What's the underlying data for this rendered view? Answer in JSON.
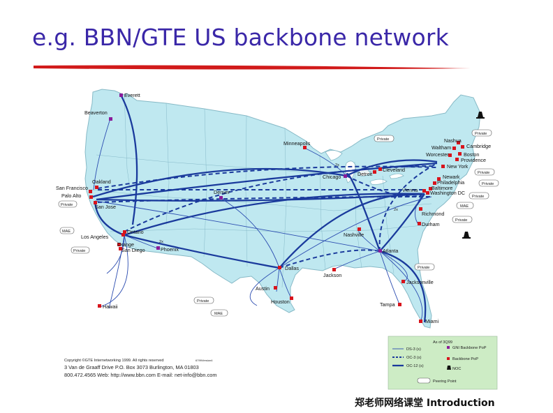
{
  "slide": {
    "title": "e.g. BBN/GTE US backbone network",
    "footer": "郑老师网络课堂  Introduction"
  },
  "colors": {
    "title": "#3a27a8",
    "underline": "#d11a1a",
    "land": "#bfe8f0",
    "ocean": "#ffffff",
    "backbone_line": "#1a3a9c",
    "gni_pop": "#8a1c9a",
    "backbone_pop": "#d8141c",
    "legend_bg": "#cdecc5"
  },
  "map": {
    "cities": {
      "everett": "Everett",
      "beaverton": "Beaverton",
      "oakland": "Oakland",
      "san_francisco": "San Francisco",
      "palo_alto": "Palo Alto",
      "san_jose": "San Jose",
      "los_angeles": "Los Angeles",
      "ontario": "Ontario",
      "orange": "Orange",
      "san_diego": "San Diego",
      "phoenix": "Phoenix",
      "denver": "Denver",
      "hawaii": "Hawaii",
      "minneapolis": "Minneapolis",
      "chicago": "Chicago",
      "detroit": "Detroit",
      "cleveland": "Cleveland",
      "vienna": "Vienna",
      "baltimore": "Baltimore",
      "washington": "Washington DC",
      "philadelphia": "Philadelphia",
      "newark": "Newark",
      "new_york": "New York",
      "providence": "Providence",
      "boston": "Boston",
      "worcester": "Worcester",
      "waltham": "Waltham",
      "cambridge": "Cambridge",
      "nashua": "Nashua",
      "richmond": "Richmond",
      "durham": "Durham",
      "nashville": "Nashville",
      "atlanta": "Atlanta",
      "jackson": "Jackson",
      "dallas": "Dallas",
      "austin": "Austin",
      "houston": "Houston",
      "jacksonville": "Jacksonville",
      "tampa": "Tampa",
      "miami": "Miami"
    },
    "private_label": "Private",
    "mae_label": "MAE",
    "line_counts": {
      "two_x": "2x",
      "four_x": "4x"
    }
  },
  "legend": {
    "title": "As of 3Q99",
    "ds3": "DS-3 (s)",
    "oc3": "OC-3 (s)",
    "oc12": "OC-12 (s)",
    "gni": "GNI Backbone PoP",
    "backbone": "Backbone PoP",
    "noc": "NOC",
    "peering": "Peering Point"
  },
  "copyright": {
    "line1": "Copyright ©GTE Internetworking 1999. All rights reserved",
    "code": "6799Version4",
    "line2": "3 Van de Graaff Drive  P.O. Box 3073  Burlington, MA 01803",
    "line3": "800.472.4565  Web:  http://www.bbn.com  E-mail: net-info@bbn.com"
  }
}
